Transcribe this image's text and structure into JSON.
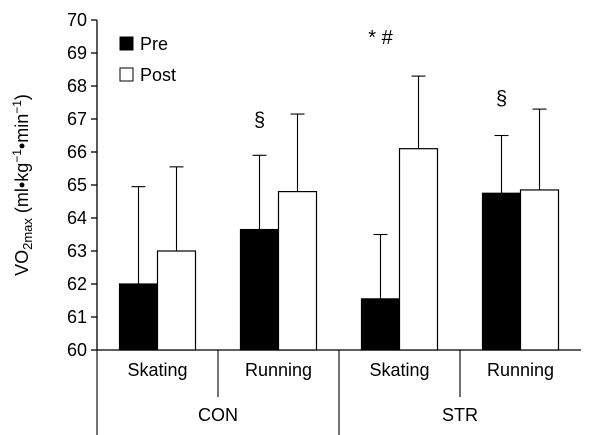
{
  "chart_data": {
    "type": "bar",
    "ylabel_parts": [
      "VO",
      "2max",
      " (ml•kg",
      "−1",
      "•min",
      "−1",
      ")"
    ],
    "ylim": [
      60,
      70
    ],
    "yticks": [
      "60",
      "61",
      "62",
      "63",
      "64",
      "65",
      "66",
      "67",
      "68",
      "69",
      "70"
    ],
    "categories": [
      "Skating",
      "Running",
      "Skating",
      "Running"
    ],
    "groups": [
      "CON",
      "STR"
    ],
    "series": [
      {
        "name": "Pre",
        "color": "#000000",
        "values": [
          62.0,
          63.65,
          61.55,
          64.75
        ],
        "error": [
          2.95,
          2.25,
          1.95,
          1.75
        ]
      },
      {
        "name": "Post",
        "color": "#ffffff",
        "values": [
          63.0,
          64.8,
          66.1,
          64.85
        ],
        "error": [
          2.55,
          2.35,
          2.2,
          2.45
        ]
      }
    ],
    "annotations": [
      {
        "text": "§",
        "category_index": 1,
        "value": 66.95
      },
      {
        "text": "* #",
        "category_index": 2,
        "value": 69.45
      },
      {
        "text": "§",
        "category_index": 3,
        "value": 67.6
      }
    ],
    "legend_position": "top-left",
    "grid": false
  }
}
